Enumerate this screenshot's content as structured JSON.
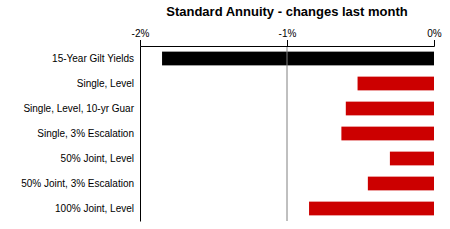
{
  "chart_data": {
    "type": "bar",
    "orientation": "horizontal",
    "title": "Standard Annuity - changes last month",
    "categories": [
      "15-Year Gilt Yields",
      "Single, Level",
      "Single, Level, 10-yr Guar",
      "Single, 3% Escalation",
      "50% Joint, Level",
      "50% Joint, 3% Escalation",
      "100% Joint, Level"
    ],
    "values": [
      -1.85,
      -0.52,
      -0.6,
      -0.63,
      -0.3,
      -0.45,
      -0.85
    ],
    "colors": [
      "#000000",
      "#cc0000",
      "#cc0000",
      "#cc0000",
      "#cc0000",
      "#cc0000",
      "#cc0000"
    ],
    "xlim": [
      -2.0,
      0.0
    ],
    "xticks": [
      {
        "value": -2.0,
        "label": "-2%"
      },
      {
        "value": -1.0,
        "label": "-1%"
      },
      {
        "value": 0.0,
        "label": "0%"
      }
    ],
    "grid": false,
    "reference_line": {
      "x": -1.0,
      "color": "#808080"
    }
  }
}
